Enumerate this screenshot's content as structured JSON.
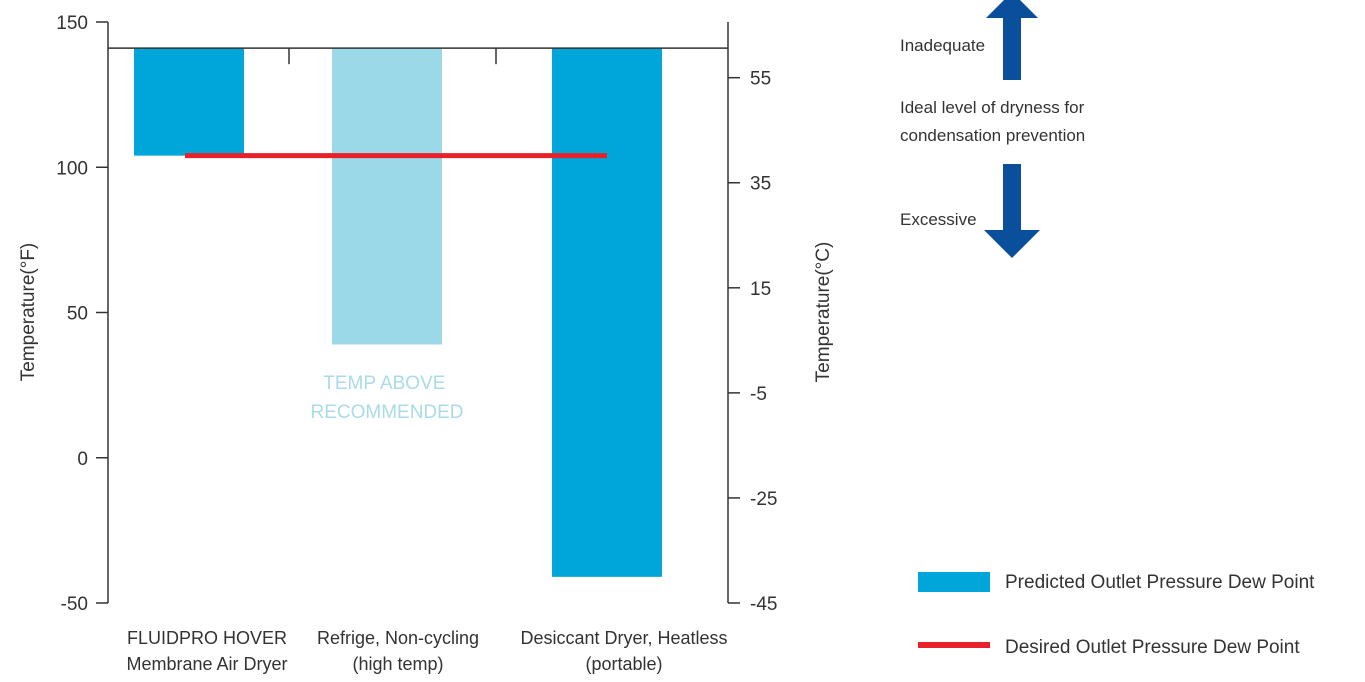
{
  "chart_data": {
    "type": "bar",
    "categories": [
      [
        "FLUIDPRO HOVER",
        "Membrane Air Dryer"
      ],
      [
        "Refrige, Non-cycling",
        "(high temp)"
      ],
      [
        "Desiccant Dryer, Heatless",
        "(portable)"
      ]
    ],
    "series": [
      {
        "name": "Predicted Outlet Pressure Dew Point",
        "values": [
          104,
          39,
          -41
        ],
        "colors": [
          "#00a6d9",
          "#9bd8e8",
          "#00a6d9"
        ]
      }
    ],
    "reference_line": {
      "name": "Desired Outlet Pressure Dew Point",
      "value": 104,
      "color": "#e8202a"
    },
    "baseline": 141,
    "y_left": {
      "label": "Temperature(°F)",
      "range": [
        -50,
        150
      ],
      "ticks": [
        -50,
        0,
        50,
        100,
        150
      ]
    },
    "y_right": {
      "label": "Temperature(°C)",
      "range": [
        -45,
        65.6
      ],
      "ticks": [
        55,
        35,
        15,
        -5,
        -25,
        -45
      ],
      "tick_labels": [
        "55",
        "35",
        "15",
        "-5",
        "-25",
        "-45"
      ]
    },
    "annotation": [
      "TEMP ABOVE",
      "RECOMMENDED"
    ],
    "legend_position": "bottom-right",
    "grid": false
  },
  "indicator": {
    "top_label": "Inadequate",
    "middle_label": [
      "Ideal level of dryness for",
      "condensation prevention"
    ],
    "bottom_label": "Excessive",
    "arrow_color": "#0a4f9c"
  },
  "legend": [
    {
      "label": "Predicted Outlet Pressure Dew Point",
      "color": "#00a6d9",
      "kind": "bar"
    },
    {
      "label": "Desired Outlet Pressure Dew Point",
      "color": "#e8202a",
      "kind": "line"
    }
  ]
}
